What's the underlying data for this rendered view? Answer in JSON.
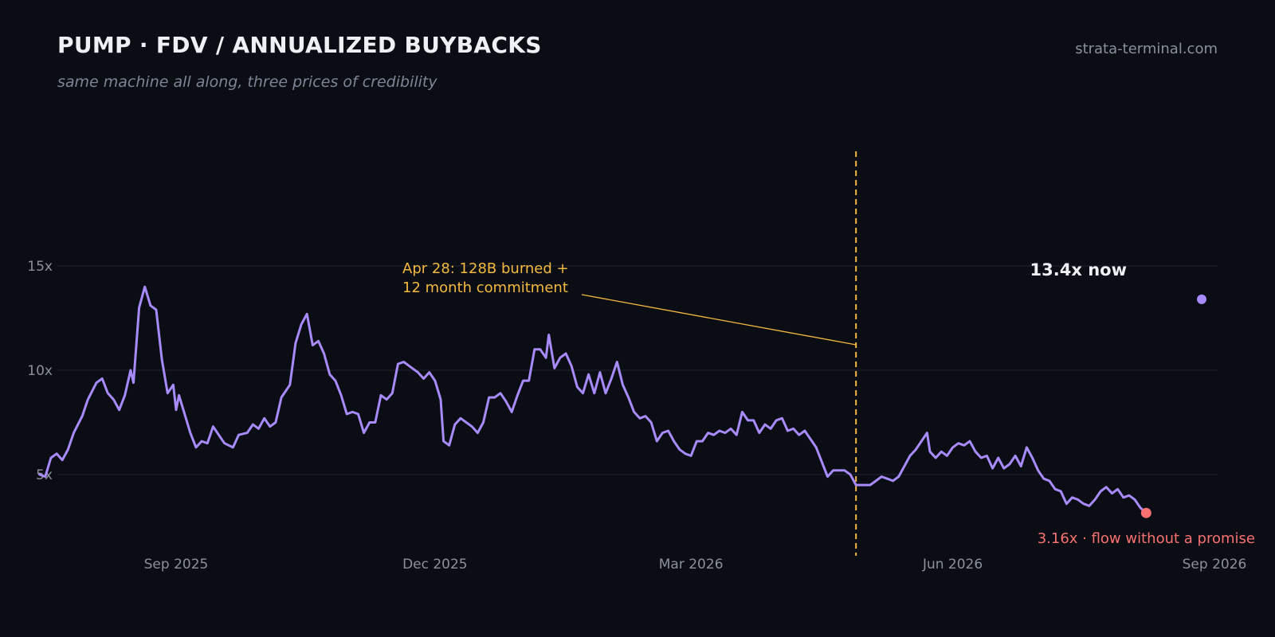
{
  "header": {
    "title": "PUMP · FDV / ANNUALIZED BUYBACKS",
    "subtitle": "same machine all along, three prices of credibility",
    "brand": "strata-terminal.com"
  },
  "colors": {
    "background": "#0b0d14",
    "line": "#a78bfa",
    "event": "#f5b942",
    "low": "#f87171",
    "grid": "#1f2230",
    "text": "#eef0f6",
    "muted": "#8c909c"
  },
  "chart_data": {
    "type": "line",
    "title": "PUMP · FDV / ANNUALIZED BUYBACKS",
    "subtitle": "same machine all along, three prices of credibility",
    "xlabel": "",
    "ylabel": "",
    "xlim": [
      "2025-07-15",
      "2026-09-01"
    ],
    "ylim": [
      1.5,
      20
    ],
    "grid": "horizontal",
    "x_ticks": [
      {
        "date": "2025-09-01",
        "label": "Sep 2025"
      },
      {
        "date": "2025-12-01",
        "label": "Dec 2025"
      },
      {
        "date": "2026-03-01",
        "label": "Mar 2026"
      },
      {
        "date": "2026-06-01",
        "label": "Jun 2026"
      },
      {
        "date": "2026-09-01",
        "label": "Sep 2026"
      }
    ],
    "y_ticks": [
      {
        "value": 5,
        "label": "5x"
      },
      {
        "value": 10,
        "label": "10x"
      },
      {
        "value": 15,
        "label": "15x"
      }
    ],
    "series": [
      {
        "points": [
          [
            "2025-07-15",
            5.0
          ],
          [
            "2025-07-17",
            4.9
          ],
          [
            "2025-07-19",
            5.8
          ],
          [
            "2025-07-21",
            6.0
          ],
          [
            "2025-07-23",
            5.7
          ],
          [
            "2025-07-25",
            6.2
          ],
          [
            "2025-07-27",
            7.0
          ],
          [
            "2025-07-30",
            7.8
          ],
          [
            "2025-08-01",
            8.6
          ],
          [
            "2025-08-04",
            9.4
          ],
          [
            "2025-08-06",
            9.6
          ],
          [
            "2025-08-08",
            8.9
          ],
          [
            "2025-08-10",
            8.6
          ],
          [
            "2025-08-12",
            8.1
          ],
          [
            "2025-08-14",
            8.8
          ],
          [
            "2025-08-16",
            10.0
          ],
          [
            "2025-08-17",
            9.4
          ],
          [
            "2025-08-19",
            13.0
          ],
          [
            "2025-08-21",
            14.0
          ],
          [
            "2025-08-23",
            13.1
          ],
          [
            "2025-08-25",
            12.9
          ],
          [
            "2025-08-27",
            10.5
          ],
          [
            "2025-08-29",
            8.9
          ],
          [
            "2025-08-31",
            9.3
          ],
          [
            "2025-09-01",
            8.1
          ],
          [
            "2025-09-02",
            8.8
          ],
          [
            "2025-09-04",
            7.9
          ],
          [
            "2025-09-06",
            7.0
          ],
          [
            "2025-09-08",
            6.3
          ],
          [
            "2025-09-10",
            6.6
          ],
          [
            "2025-09-12",
            6.5
          ],
          [
            "2025-09-14",
            7.3
          ],
          [
            "2025-09-16",
            6.9
          ],
          [
            "2025-09-18",
            6.5
          ],
          [
            "2025-09-21",
            6.3
          ],
          [
            "2025-09-23",
            6.9
          ],
          [
            "2025-09-26",
            7.0
          ],
          [
            "2025-09-28",
            7.4
          ],
          [
            "2025-09-30",
            7.2
          ],
          [
            "2025-10-02",
            7.7
          ],
          [
            "2025-10-04",
            7.3
          ],
          [
            "2025-10-06",
            7.5
          ],
          [
            "2025-10-08",
            8.7
          ],
          [
            "2025-10-11",
            9.3
          ],
          [
            "2025-10-13",
            11.3
          ],
          [
            "2025-10-15",
            12.2
          ],
          [
            "2025-10-17",
            12.7
          ],
          [
            "2025-10-19",
            11.2
          ],
          [
            "2025-10-21",
            11.4
          ],
          [
            "2025-10-23",
            10.8
          ],
          [
            "2025-10-25",
            9.8
          ],
          [
            "2025-10-27",
            9.5
          ],
          [
            "2025-10-29",
            8.8
          ],
          [
            "2025-10-31",
            7.9
          ],
          [
            "2025-11-02",
            8.0
          ],
          [
            "2025-11-04",
            7.9
          ],
          [
            "2025-11-06",
            7.0
          ],
          [
            "2025-11-08",
            7.5
          ],
          [
            "2025-11-10",
            7.5
          ],
          [
            "2025-11-12",
            8.8
          ],
          [
            "2025-11-14",
            8.6
          ],
          [
            "2025-11-16",
            8.9
          ],
          [
            "2025-11-18",
            10.3
          ],
          [
            "2025-11-20",
            10.4
          ],
          [
            "2025-11-23",
            10.1
          ],
          [
            "2025-11-25",
            9.9
          ],
          [
            "2025-11-27",
            9.6
          ],
          [
            "2025-11-29",
            9.9
          ],
          [
            "2025-12-01",
            9.5
          ],
          [
            "2025-12-03",
            8.6
          ],
          [
            "2025-12-04",
            6.6
          ],
          [
            "2025-12-06",
            6.4
          ],
          [
            "2025-12-08",
            7.4
          ],
          [
            "2025-12-10",
            7.7
          ],
          [
            "2025-12-12",
            7.5
          ],
          [
            "2025-12-14",
            7.3
          ],
          [
            "2025-12-16",
            7.0
          ],
          [
            "2025-12-18",
            7.5
          ],
          [
            "2025-12-20",
            8.7
          ],
          [
            "2025-12-22",
            8.7
          ],
          [
            "2025-12-24",
            8.9
          ],
          [
            "2025-12-26",
            8.5
          ],
          [
            "2025-12-28",
            8.0
          ],
          [
            "2025-12-30",
            8.8
          ],
          [
            "2026-01-01",
            9.5
          ],
          [
            "2026-01-03",
            9.5
          ],
          [
            "2026-01-05",
            11.0
          ],
          [
            "2026-01-07",
            11.0
          ],
          [
            "2026-01-09",
            10.6
          ],
          [
            "2026-01-10",
            11.7
          ],
          [
            "2026-01-12",
            10.1
          ],
          [
            "2026-01-14",
            10.6
          ],
          [
            "2026-01-16",
            10.8
          ],
          [
            "2026-01-18",
            10.2
          ],
          [
            "2026-01-20",
            9.2
          ],
          [
            "2026-01-22",
            8.9
          ],
          [
            "2026-01-24",
            9.8
          ],
          [
            "2026-01-26",
            8.9
          ],
          [
            "2026-01-28",
            9.9
          ],
          [
            "2026-01-30",
            8.9
          ],
          [
            "2026-02-01",
            9.6
          ],
          [
            "2026-02-03",
            10.4
          ],
          [
            "2026-02-05",
            9.3
          ],
          [
            "2026-02-07",
            8.7
          ],
          [
            "2026-02-09",
            8.0
          ],
          [
            "2026-02-11",
            7.7
          ],
          [
            "2026-02-13",
            7.8
          ],
          [
            "2026-02-15",
            7.5
          ],
          [
            "2026-02-17",
            6.6
          ],
          [
            "2026-02-19",
            7.0
          ],
          [
            "2026-02-21",
            7.1
          ],
          [
            "2026-02-23",
            6.6
          ],
          [
            "2026-02-25",
            6.2
          ],
          [
            "2026-02-27",
            6.0
          ],
          [
            "2026-03-01",
            5.9
          ],
          [
            "2026-03-03",
            6.6
          ],
          [
            "2026-03-05",
            6.6
          ],
          [
            "2026-03-07",
            7.0
          ],
          [
            "2026-03-09",
            6.9
          ],
          [
            "2026-03-11",
            7.1
          ],
          [
            "2026-03-13",
            7.0
          ],
          [
            "2026-03-15",
            7.2
          ],
          [
            "2026-03-17",
            6.9
          ],
          [
            "2026-03-19",
            8.0
          ],
          [
            "2026-03-21",
            7.6
          ],
          [
            "2026-03-23",
            7.6
          ],
          [
            "2026-03-25",
            7.0
          ],
          [
            "2026-03-27",
            7.4
          ],
          [
            "2026-03-29",
            7.2
          ],
          [
            "2026-03-31",
            7.6
          ],
          [
            "2026-04-02",
            7.7
          ],
          [
            "2026-04-04",
            7.1
          ],
          [
            "2026-04-06",
            7.2
          ],
          [
            "2026-04-08",
            6.9
          ],
          [
            "2026-04-10",
            7.1
          ],
          [
            "2026-04-12",
            6.7
          ],
          [
            "2026-04-14",
            6.3
          ],
          [
            "2026-04-16",
            5.6
          ],
          [
            "2026-04-18",
            4.9
          ],
          [
            "2026-04-20",
            5.2
          ],
          [
            "2026-04-22",
            5.2
          ],
          [
            "2026-04-24",
            5.2
          ],
          [
            "2026-04-26",
            5.0
          ],
          [
            "2026-04-28",
            4.5
          ],
          [
            "2026-05-01",
            4.5
          ],
          [
            "2026-05-03",
            4.5
          ],
          [
            "2026-05-05",
            4.7
          ],
          [
            "2026-05-07",
            4.9
          ],
          [
            "2026-05-09",
            4.8
          ],
          [
            "2026-05-11",
            4.7
          ],
          [
            "2026-05-13",
            4.9
          ],
          [
            "2026-05-15",
            5.4
          ],
          [
            "2026-05-17",
            5.9
          ],
          [
            "2026-05-19",
            6.2
          ],
          [
            "2026-05-21",
            6.6
          ],
          [
            "2026-05-23",
            7.0
          ],
          [
            "2026-05-24",
            6.1
          ],
          [
            "2026-05-26",
            5.8
          ],
          [
            "2026-05-28",
            6.1
          ],
          [
            "2026-05-30",
            5.9
          ],
          [
            "2026-06-01",
            6.3
          ],
          [
            "2026-06-03",
            6.5
          ],
          [
            "2026-06-05",
            6.4
          ],
          [
            "2026-06-07",
            6.6
          ],
          [
            "2026-06-09",
            6.1
          ],
          [
            "2026-06-11",
            5.8
          ],
          [
            "2026-06-13",
            5.9
          ],
          [
            "2026-06-15",
            5.3
          ],
          [
            "2026-06-17",
            5.8
          ],
          [
            "2026-06-19",
            5.3
          ],
          [
            "2026-06-21",
            5.5
          ],
          [
            "2026-06-23",
            5.9
          ],
          [
            "2026-06-25",
            5.4
          ],
          [
            "2026-06-27",
            6.3
          ],
          [
            "2026-06-29",
            5.8
          ],
          [
            "2026-07-01",
            5.2
          ],
          [
            "2026-07-03",
            4.8
          ],
          [
            "2026-07-05",
            4.7
          ],
          [
            "2026-07-07",
            4.3
          ],
          [
            "2026-07-09",
            4.2
          ],
          [
            "2026-07-11",
            3.6
          ],
          [
            "2026-07-13",
            3.9
          ],
          [
            "2026-07-15",
            3.8
          ],
          [
            "2026-07-17",
            3.6
          ],
          [
            "2026-07-19",
            3.5
          ],
          [
            "2026-07-21",
            3.8
          ],
          [
            "2026-07-23",
            4.2
          ],
          [
            "2026-07-25",
            4.4
          ],
          [
            "2026-07-27",
            4.1
          ],
          [
            "2026-07-29",
            4.3
          ],
          [
            "2026-07-31",
            3.9
          ],
          [
            "2026-08-02",
            4.0
          ],
          [
            "2026-08-04",
            3.8
          ],
          [
            "2026-08-06",
            3.4
          ],
          [
            "2026-08-08",
            3.16
          ]
        ]
      }
    ],
    "low_point": {
      "date": "2026-08-08",
      "value": 3.16,
      "label": "3.16x · flow without a promise"
    },
    "event": {
      "date": "2026-04-28",
      "label_lines": [
        "Apr 28: 128B burned +",
        "12 month commitment"
      ]
    },
    "current": {
      "date": "2026-09-01",
      "value": 13.4,
      "label": "13.4x now"
    }
  }
}
